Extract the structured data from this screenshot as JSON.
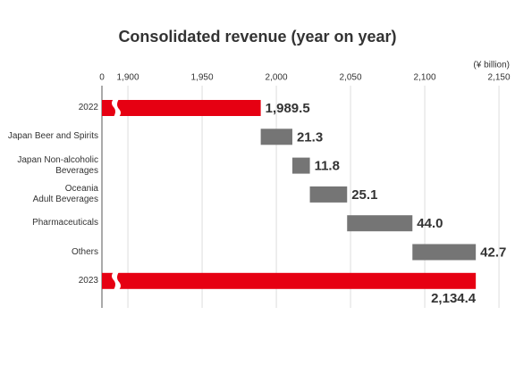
{
  "chart_data": {
    "type": "waterfall",
    "title": "Consolidated revenue (year on year)",
    "unit_label": "(¥ billion)",
    "categories": [
      "2022",
      "Japan Beer and Spirits",
      "Japan Non-alcoholic\nBeverages",
      "Oceania\nAdult Beverages",
      "Pharmaceuticals",
      "Others",
      "2023"
    ],
    "values": [
      1989.5,
      21.3,
      11.8,
      25.1,
      44.0,
      42.7,
      2134.4
    ],
    "value_labels": [
      "1,989.5",
      "21.3",
      "11.8",
      "25.1",
      "44.0",
      "42.7",
      "2,134.4"
    ],
    "measure": [
      "total",
      "relative",
      "relative",
      "relative",
      "relative",
      "relative",
      "total"
    ],
    "total_color": "#e60012",
    "relative_color": "#757575",
    "xlim": [
      1882.5,
      2160
    ],
    "xticks": [
      0,
      {
        "value": 1900,
        "label": "1,900"
      },
      {
        "value": 1950,
        "label": "1,950"
      },
      {
        "value": 2000,
        "label": "2,000"
      },
      {
        "value": 2050,
        "label": "2,050"
      },
      {
        "value": 2100,
        "label": "2,100"
      },
      {
        "value": 2150,
        "label": "2,150"
      }
    ],
    "axis_break": true,
    "grid": true
  }
}
